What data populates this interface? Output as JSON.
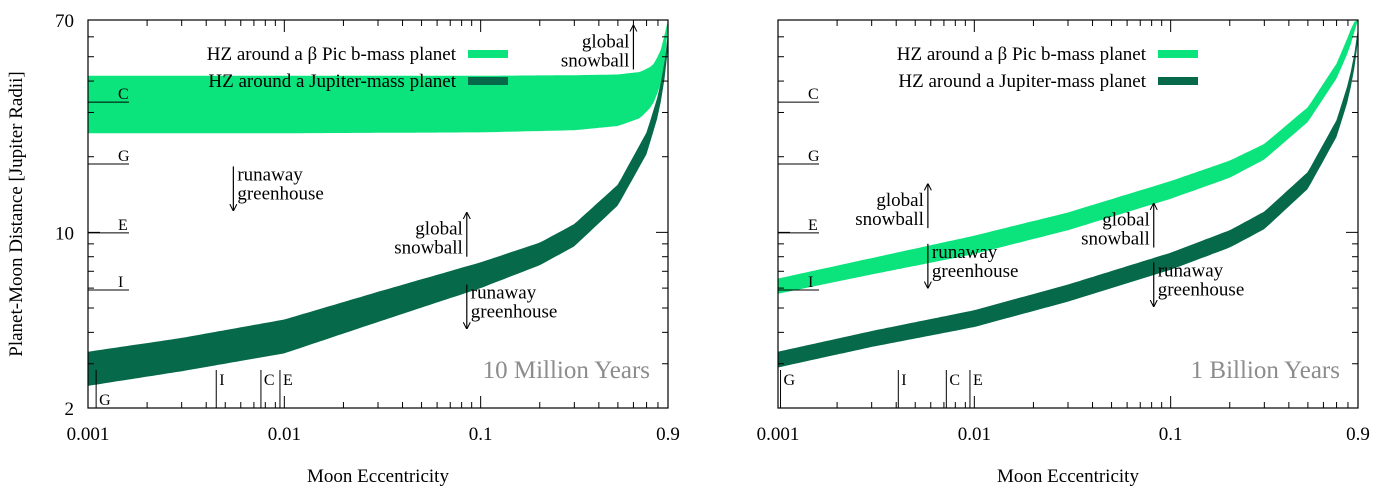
{
  "chart_data": [
    {
      "type": "area",
      "xscale": "log",
      "yscale": "log",
      "xlim": [
        0.001,
        0.9
      ],
      "ylim": [
        2,
        70
      ],
      "xticks": [
        {
          "v": 0.001,
          "label": "0.001"
        },
        {
          "v": 0.01,
          "label": "0.01"
        },
        {
          "v": 0.1,
          "label": "0.1"
        },
        {
          "v": 0.9,
          "label": "0.9"
        }
      ],
      "yticks": [
        {
          "v": 2,
          "label": "2"
        },
        {
          "v": 10,
          "label": "10"
        },
        {
          "v": 70,
          "label": "70"
        }
      ],
      "xlabel": "Moon Eccentricity",
      "ylabel": "Planet-Moon Distance [Jupiter Radii]",
      "panel_label": "10 Million Years",
      "legend_position": "top-left",
      "series": [
        {
          "name": "HZ around a β Pic b-mass planet",
          "color": "#0be37c",
          "x": [
            0.001,
            0.01,
            0.1,
            0.3,
            0.5,
            0.65,
            0.75,
            0.82,
            0.86,
            0.88,
            0.9
          ],
          "lower": [
            24.8,
            24.8,
            25.0,
            25.5,
            26.5,
            28.5,
            32,
            38,
            46,
            55,
            66
          ],
          "upper": [
            42.0,
            42.0,
            42.0,
            42.2,
            42.5,
            43.5,
            46,
            52,
            60,
            66,
            70
          ]
        },
        {
          "name": "HZ around a Jupiter-mass planet",
          "color": "#066a4a",
          "x": [
            0.001,
            0.003,
            0.01,
            0.03,
            0.1,
            0.2,
            0.3,
            0.5,
            0.7,
            0.8,
            0.85,
            0.88,
            0.9
          ],
          "lower": [
            2.45,
            2.8,
            3.3,
            4.4,
            6.0,
            7.4,
            8.8,
            12.8,
            20.5,
            29,
            37,
            46,
            54
          ],
          "upper": [
            3.35,
            3.8,
            4.5,
            5.8,
            7.6,
            9.1,
            10.8,
            15.5,
            25,
            35,
            44,
            53,
            62
          ]
        }
      ],
      "moon_markers_y": [
        {
          "label": "I",
          "value": 5.9
        },
        {
          "label": "E",
          "value": 9.95
        },
        {
          "label": "G",
          "value": 18.7
        },
        {
          "label": "C",
          "value": 33.0
        }
      ],
      "moon_markers_x": [
        {
          "label": "G",
          "value": 0.0011
        },
        {
          "label": "I",
          "value": 0.0045
        },
        {
          "label": "C",
          "value": 0.0076
        },
        {
          "label": "E",
          "value": 0.0095
        }
      ],
      "annotations": [
        {
          "lines": [
            "runaway",
            "greenhouse"
          ],
          "x": 0.0055,
          "y": 18.3,
          "arrow": "down",
          "text_side": "right"
        },
        {
          "lines": [
            "global",
            "snowball"
          ],
          "x": 0.085,
          "y": 8.0,
          "arrow": "up",
          "text_side": "left"
        },
        {
          "lines": [
            "runaway",
            "greenhouse"
          ],
          "x": 0.085,
          "y": 6.2,
          "arrow": "down",
          "text_side": "right"
        },
        {
          "lines": [
            "global",
            "snowball"
          ],
          "x": 0.6,
          "y": 44.5,
          "arrow": "up",
          "text_side": "left"
        }
      ]
    },
    {
      "type": "area",
      "xscale": "log",
      "yscale": "log",
      "xlim": [
        0.001,
        0.9
      ],
      "ylim": [
        2,
        70
      ],
      "xticks": [
        {
          "v": 0.001,
          "label": "0.001"
        },
        {
          "v": 0.01,
          "label": "0.01"
        },
        {
          "v": 0.1,
          "label": "0.1"
        },
        {
          "v": 0.9,
          "label": "0.9"
        }
      ],
      "yticks": [],
      "xlabel": "Moon Eccentricity",
      "ylabel": "",
      "panel_label": "1 Billion Years",
      "legend_position": "top-left",
      "series": [
        {
          "name": "HZ around a β Pic b-mass planet",
          "color": "#0be37c",
          "x": [
            0.001,
            0.003,
            0.01,
            0.03,
            0.1,
            0.2,
            0.3,
            0.5,
            0.7,
            0.8,
            0.85,
            0.88,
            0.9
          ],
          "lower": [
            5.7,
            6.8,
            8.2,
            10.2,
            13.6,
            16.5,
            19.5,
            27.5,
            41,
            52,
            60,
            67,
            70
          ],
          "upper": [
            6.55,
            7.9,
            9.7,
            12.0,
            16.0,
            19.3,
            22.5,
            31.5,
            47,
            60,
            68,
            70,
            70
          ]
        },
        {
          "name": "HZ around a Jupiter-mass planet",
          "color": "#066a4a",
          "x": [
            0.001,
            0.003,
            0.01,
            0.03,
            0.1,
            0.2,
            0.3,
            0.5,
            0.7,
            0.8,
            0.85,
            0.88,
            0.9
          ],
          "lower": [
            2.9,
            3.5,
            4.2,
            5.3,
            7.1,
            8.7,
            10.3,
            14.9,
            24,
            33.5,
            42,
            50,
            58
          ],
          "upper": [
            3.35,
            4.05,
            4.9,
            6.2,
            8.3,
            10.2,
            12.1,
            17.4,
            28,
            39,
            48,
            57,
            65
          ]
        }
      ],
      "moon_markers_y": [
        {
          "label": "I",
          "value": 5.9
        },
        {
          "label": "E",
          "value": 9.95
        },
        {
          "label": "G",
          "value": 18.7
        },
        {
          "label": "C",
          "value": 33.0
        }
      ],
      "moon_markers_x": [
        {
          "label": "G",
          "value": 0.00103
        },
        {
          "label": "I",
          "value": 0.0041
        },
        {
          "label": "C",
          "value": 0.0072
        },
        {
          "label": "E",
          "value": 0.0095
        }
      ],
      "annotations": [
        {
          "lines": [
            "global",
            "snowball"
          ],
          "x": 0.0058,
          "y": 10.4,
          "arrow": "up",
          "text_side": "left"
        },
        {
          "lines": [
            "runaway",
            "greenhouse"
          ],
          "x": 0.0058,
          "y": 9.0,
          "arrow": "down",
          "text_side": "right"
        },
        {
          "lines": [
            "global",
            "snowball"
          ],
          "x": 0.082,
          "y": 8.7,
          "arrow": "up",
          "text_side": "left"
        },
        {
          "lines": [
            "runaway",
            "greenhouse"
          ],
          "x": 0.082,
          "y": 7.6,
          "arrow": "down",
          "text_side": "right"
        }
      ]
    }
  ]
}
